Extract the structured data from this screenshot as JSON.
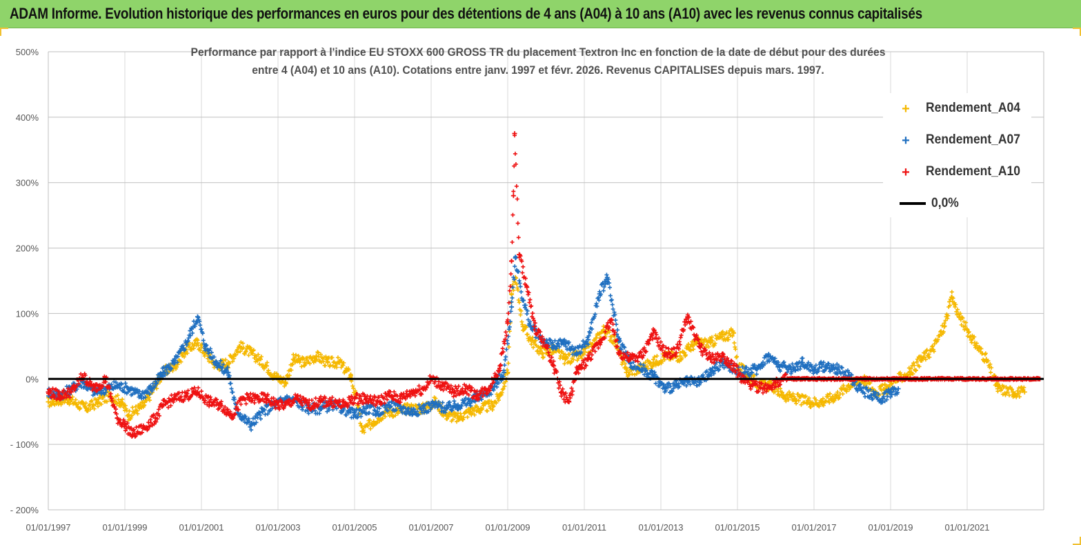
{
  "banner": {
    "title": "ADAM Informe. Evolution historique des performances en euros pour des détentions de 4 ans (A04) à 10 ans (A10) avec les revenus connus capitalisés"
  },
  "colors": {
    "banner": "#8fd46a",
    "a04": "#f5b800",
    "a07": "#1f6fc0",
    "a10": "#ee1111",
    "zero": "#000000"
  },
  "chart_data": {
    "type": "scatter",
    "title_line1": "Performance par rapport à l'indice EU STOXX 600 GROSS TR  du placement Textron Inc en fonction de la date de début pour des durées",
    "title_line2": "entre 4 (A04) et 10 ans (A10).  Cotations entre janv. 1997 et févr. 2026. Revenus  CAPITALISES depuis mars. 1997.",
    "xlim": [
      1997.0,
      2023.0
    ],
    "ylim": [
      -200,
      500
    ],
    "y_ticks": [
      {
        "v": 500,
        "label": "500%"
      },
      {
        "v": 400,
        "label": "400%"
      },
      {
        "v": 300,
        "label": "300%"
      },
      {
        "v": 200,
        "label": "200%"
      },
      {
        "v": 100,
        "label": "100%"
      },
      {
        "v": 0,
        "label": "0%"
      },
      {
        "v": -100,
        "label": "- 100%"
      },
      {
        "v": -200,
        "label": "- 200%"
      }
    ],
    "x_ticks": [
      {
        "v": 1997,
        "label": "01/01/1997"
      },
      {
        "v": 1999,
        "label": "01/01/1999"
      },
      {
        "v": 2001,
        "label": "01/01/2001"
      },
      {
        "v": 2003,
        "label": "01/01/2003"
      },
      {
        "v": 2005,
        "label": "01/01/2005"
      },
      {
        "v": 2007,
        "label": "01/01/2007"
      },
      {
        "v": 2009,
        "label": "01/01/2009"
      },
      {
        "v": 2011,
        "label": "01/01/2011"
      },
      {
        "v": 2013,
        "label": "01/01/2013"
      },
      {
        "v": 2015,
        "label": "01/01/2015"
      },
      {
        "v": 2017,
        "label": "01/01/2017"
      },
      {
        "v": 2019,
        "label": "01/01/2019"
      },
      {
        "v": 2021,
        "label": "01/01/2021"
      }
    ],
    "zero_line": {
      "y": 0,
      "label": "0,0%"
    },
    "series": [
      {
        "name": "Rendement_A04",
        "color": "#f5b800",
        "points": [
          [
            1997.0,
            -35
          ],
          [
            1997.5,
            -30
          ],
          [
            1998.0,
            -45
          ],
          [
            1998.3,
            -35
          ],
          [
            1998.6,
            -25
          ],
          [
            1998.9,
            -35
          ],
          [
            1999.1,
            -55
          ],
          [
            1999.5,
            -40
          ],
          [
            1999.8,
            -10
          ],
          [
            2000.0,
            10
          ],
          [
            2000.3,
            20
          ],
          [
            2000.6,
            45
          ],
          [
            2000.9,
            55
          ],
          [
            2001.1,
            40
          ],
          [
            2001.4,
            20
          ],
          [
            2001.7,
            25
          ],
          [
            2002.0,
            50
          ],
          [
            2002.3,
            40
          ],
          [
            2002.7,
            20
          ],
          [
            2002.9,
            5
          ],
          [
            2003.2,
            -5
          ],
          [
            2003.4,
            30
          ],
          [
            2003.7,
            25
          ],
          [
            2004.0,
            35
          ],
          [
            2004.3,
            25
          ],
          [
            2004.6,
            25
          ],
          [
            2004.9,
            5
          ],
          [
            2005.1,
            -45
          ],
          [
            2005.2,
            -80
          ],
          [
            2005.5,
            -65
          ],
          [
            2005.8,
            -50
          ],
          [
            2006.1,
            -50
          ],
          [
            2006.4,
            -45
          ],
          [
            2006.8,
            -45
          ],
          [
            2007.1,
            -35
          ],
          [
            2007.4,
            -55
          ],
          [
            2007.7,
            -60
          ],
          [
            2008.0,
            -50
          ],
          [
            2008.3,
            -45
          ],
          [
            2008.6,
            -40
          ],
          [
            2008.8,
            -25
          ],
          [
            2009.0,
            10
          ],
          [
            2009.1,
            130
          ],
          [
            2009.2,
            155
          ],
          [
            2009.4,
            80
          ],
          [
            2009.6,
            60
          ],
          [
            2009.9,
            40
          ],
          [
            2010.2,
            45
          ],
          [
            2010.5,
            30
          ],
          [
            2010.9,
            35
          ],
          [
            2011.2,
            50
          ],
          [
            2011.5,
            75
          ],
          [
            2011.8,
            60
          ],
          [
            2012.1,
            10
          ],
          [
            2012.4,
            15
          ],
          [
            2012.8,
            25
          ],
          [
            2013.1,
            35
          ],
          [
            2013.5,
            35
          ],
          [
            2013.9,
            55
          ],
          [
            2014.3,
            55
          ],
          [
            2014.6,
            65
          ],
          [
            2014.9,
            70
          ],
          [
            2015.0,
            20
          ],
          [
            2015.3,
            5
          ],
          [
            2015.6,
            -10
          ],
          [
            2015.9,
            -10
          ],
          [
            2016.2,
            -25
          ],
          [
            2016.5,
            -30
          ],
          [
            2016.9,
            -35
          ],
          [
            2017.2,
            -35
          ],
          [
            2017.6,
            -25
          ],
          [
            2017.9,
            -10
          ],
          [
            2018.3,
            0
          ],
          [
            2018.6,
            -20
          ],
          [
            2018.9,
            -15
          ],
          [
            2019.2,
            0
          ],
          [
            2019.5,
            10
          ],
          [
            2019.8,
            30
          ],
          [
            2020.1,
            45
          ],
          [
            2020.4,
            80
          ],
          [
            2020.6,
            125
          ],
          [
            2020.8,
            95
          ],
          [
            2021.0,
            75
          ],
          [
            2021.2,
            55
          ],
          [
            2021.5,
            30
          ],
          [
            2021.8,
            -15
          ],
          [
            2022.2,
            -20
          ],
          [
            2022.5,
            -20
          ]
        ]
      },
      {
        "name": "Rendement_A07",
        "color": "#1f6fc0",
        "points": [
          [
            1997.0,
            -20
          ],
          [
            1997.3,
            -25
          ],
          [
            1997.6,
            -15
          ],
          [
            1997.9,
            -5
          ],
          [
            1998.2,
            -20
          ],
          [
            1998.5,
            -15
          ],
          [
            1998.8,
            -10
          ],
          [
            1999.1,
            -15
          ],
          [
            1999.4,
            -25
          ],
          [
            1999.7,
            -15
          ],
          [
            2000.0,
            10
          ],
          [
            2000.3,
            25
          ],
          [
            2000.6,
            55
          ],
          [
            2000.9,
            95
          ],
          [
            2001.1,
            50
          ],
          [
            2001.4,
            25
          ],
          [
            2001.7,
            10
          ],
          [
            2001.9,
            -45
          ],
          [
            2002.1,
            -60
          ],
          [
            2002.3,
            -70
          ],
          [
            2002.6,
            -50
          ],
          [
            2002.9,
            -40
          ],
          [
            2003.2,
            -30
          ],
          [
            2003.5,
            -35
          ],
          [
            2003.8,
            -45
          ],
          [
            2004.1,
            -45
          ],
          [
            2004.4,
            -40
          ],
          [
            2004.7,
            -45
          ],
          [
            2005.0,
            -55
          ],
          [
            2005.3,
            -45
          ],
          [
            2005.6,
            -50
          ],
          [
            2005.9,
            -40
          ],
          [
            2006.2,
            -45
          ],
          [
            2006.5,
            -50
          ],
          [
            2006.8,
            -45
          ],
          [
            2007.1,
            -40
          ],
          [
            2007.4,
            -45
          ],
          [
            2007.7,
            -40
          ],
          [
            2008.0,
            -35
          ],
          [
            2008.3,
            -25
          ],
          [
            2008.6,
            -15
          ],
          [
            2008.9,
            10
          ],
          [
            2009.1,
            110
          ],
          [
            2009.2,
            185
          ],
          [
            2009.4,
            120
          ],
          [
            2009.6,
            80
          ],
          [
            2009.9,
            60
          ],
          [
            2010.2,
            50
          ],
          [
            2010.5,
            55
          ],
          [
            2010.8,
            40
          ],
          [
            2011.1,
            60
          ],
          [
            2011.4,
            130
          ],
          [
            2011.6,
            155
          ],
          [
            2011.9,
            60
          ],
          [
            2012.2,
            25
          ],
          [
            2012.5,
            15
          ],
          [
            2012.8,
            5
          ],
          [
            2013.1,
            -15
          ],
          [
            2013.4,
            -10
          ],
          [
            2013.7,
            -5
          ],
          [
            2014.0,
            -5
          ],
          [
            2014.3,
            10
          ],
          [
            2014.6,
            25
          ],
          [
            2014.9,
            15
          ],
          [
            2015.2,
            10
          ],
          [
            2015.5,
            15
          ],
          [
            2015.8,
            35
          ],
          [
            2016.1,
            20
          ],
          [
            2016.4,
            15
          ],
          [
            2016.7,
            25
          ],
          [
            2017.0,
            15
          ],
          [
            2017.3,
            20
          ],
          [
            2017.6,
            15
          ],
          [
            2017.9,
            5
          ],
          [
            2018.2,
            -15
          ],
          [
            2018.5,
            -25
          ],
          [
            2018.8,
            -30
          ],
          [
            2019.0,
            -20
          ],
          [
            2019.2,
            -15
          ]
        ]
      },
      {
        "name": "Rendement_A10",
        "color": "#ee1111",
        "points": [
          [
            1997.0,
            -20
          ],
          [
            1997.3,
            -25
          ],
          [
            1997.6,
            -20
          ],
          [
            1997.9,
            5
          ],
          [
            1998.2,
            -15
          ],
          [
            1998.5,
            0
          ],
          [
            1998.8,
            -60
          ],
          [
            1999.0,
            -70
          ],
          [
            1999.2,
            -85
          ],
          [
            1999.5,
            -75
          ],
          [
            1999.8,
            -60
          ],
          [
            2000.0,
            -40
          ],
          [
            2000.3,
            -30
          ],
          [
            2000.6,
            -25
          ],
          [
            2000.9,
            -20
          ],
          [
            2001.2,
            -35
          ],
          [
            2001.5,
            -40
          ],
          [
            2001.8,
            -55
          ],
          [
            2002.1,
            -30
          ],
          [
            2002.4,
            -30
          ],
          [
            2002.7,
            -30
          ],
          [
            2003.0,
            -40
          ],
          [
            2003.2,
            -40
          ],
          [
            2003.5,
            -30
          ],
          [
            2003.8,
            -40
          ],
          [
            2004.1,
            -35
          ],
          [
            2004.4,
            -35
          ],
          [
            2004.7,
            -40
          ],
          [
            2005.0,
            -30
          ],
          [
            2005.3,
            -30
          ],
          [
            2005.6,
            -35
          ],
          [
            2005.9,
            -25
          ],
          [
            2006.2,
            -30
          ],
          [
            2006.5,
            -20
          ],
          [
            2006.8,
            -15
          ],
          [
            2007.0,
            0
          ],
          [
            2007.3,
            -10
          ],
          [
            2007.6,
            -20
          ],
          [
            2007.9,
            -15
          ],
          [
            2008.2,
            -25
          ],
          [
            2008.5,
            -15
          ],
          [
            2008.8,
            20
          ],
          [
            2009.0,
            85
          ],
          [
            2009.1,
            180
          ],
          [
            2009.15,
            280
          ],
          [
            2009.18,
            375
          ],
          [
            2009.3,
            190
          ],
          [
            2009.5,
            140
          ],
          [
            2009.7,
            80
          ],
          [
            2010.0,
            50
          ],
          [
            2010.2,
            20
          ],
          [
            2010.4,
            -20
          ],
          [
            2010.6,
            -35
          ],
          [
            2010.8,
            10
          ],
          [
            2011.1,
            30
          ],
          [
            2011.4,
            55
          ],
          [
            2011.7,
            90
          ],
          [
            2011.9,
            40
          ],
          [
            2012.2,
            30
          ],
          [
            2012.5,
            35
          ],
          [
            2012.8,
            70
          ],
          [
            2013.1,
            40
          ],
          [
            2013.4,
            40
          ],
          [
            2013.7,
            95
          ],
          [
            2014.0,
            50
          ],
          [
            2014.3,
            30
          ],
          [
            2014.6,
            35
          ],
          [
            2014.9,
            20
          ],
          [
            2015.1,
            0
          ],
          [
            2015.4,
            -10
          ],
          [
            2015.7,
            -15
          ],
          [
            2016.0,
            -5
          ],
          [
            2016.3,
            0
          ],
          [
            2022.9,
            0
          ]
        ]
      }
    ],
    "legend": [
      {
        "name": "Rendement_A04",
        "symbol": "+"
      },
      {
        "name": "Rendement_A07",
        "symbol": "+"
      },
      {
        "name": "Rendement_A10",
        "symbol": "+"
      },
      {
        "name": "0,0%",
        "symbol": "line"
      }
    ]
  }
}
